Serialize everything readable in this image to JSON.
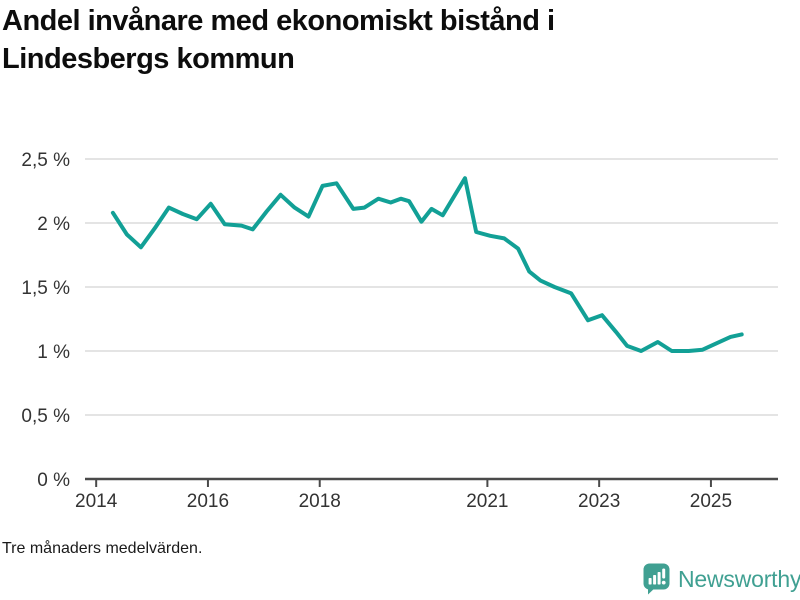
{
  "header": {
    "title_line1": "Andel invånare med ekonomiskt bistånd i",
    "title_line2": "Lindesbergs kommun"
  },
  "footer": {
    "note": "Tre månaders medelvärden.",
    "brand": "Newsworthy"
  },
  "colors": {
    "line": "#12a096",
    "brand": "#40a092",
    "grid": "#dcdcdc",
    "axis": "#4a4a4a",
    "tick_text": "#333333"
  },
  "chart_data": {
    "type": "line",
    "title": "Andel invånare med ekonomiskt bistånd i Lindesbergs kommun",
    "subtitle": "Tre månaders medelvärden.",
    "xlabel": "",
    "ylabel": "",
    "grid": true,
    "legend": false,
    "xlim": [
      2013.8,
      2026.2
    ],
    "ylim": [
      0,
      2.5
    ],
    "yticks": [
      0,
      0.5,
      1,
      1.5,
      2,
      2.5
    ],
    "ytick_labels": [
      "0 %",
      "0,5 %",
      "1 %",
      "1,5 %",
      "2 %",
      "2,5 %"
    ],
    "xticks": [
      2014,
      2016,
      2018,
      2021,
      2023,
      2025
    ],
    "xtick_labels": [
      "2014",
      "2016",
      "2018",
      "2021",
      "2023",
      "2025"
    ],
    "series": [
      {
        "points": [
          [
            2014.3,
            2.08
          ],
          [
            2014.55,
            1.91
          ],
          [
            2014.8,
            1.81
          ],
          [
            2015.05,
            1.96
          ],
          [
            2015.3,
            2.12
          ],
          [
            2015.55,
            2.07
          ],
          [
            2015.8,
            2.03
          ],
          [
            2016.05,
            2.15
          ],
          [
            2016.3,
            1.99
          ],
          [
            2016.6,
            1.98
          ],
          [
            2016.8,
            1.95
          ],
          [
            2017.05,
            2.09
          ],
          [
            2017.3,
            2.22
          ],
          [
            2017.55,
            2.12
          ],
          [
            2017.8,
            2.05
          ],
          [
            2018.05,
            2.29
          ],
          [
            2018.3,
            2.31
          ],
          [
            2018.6,
            2.11
          ],
          [
            2018.8,
            2.12
          ],
          [
            2019.05,
            2.19
          ],
          [
            2019.27,
            2.16
          ],
          [
            2019.45,
            2.19
          ],
          [
            2019.6,
            2.17
          ],
          [
            2019.82,
            2.01
          ],
          [
            2020.0,
            2.11
          ],
          [
            2020.2,
            2.06
          ],
          [
            2020.6,
            2.35
          ],
          [
            2020.8,
            1.93
          ],
          [
            2021.05,
            1.9
          ],
          [
            2021.3,
            1.88
          ],
          [
            2021.55,
            1.8
          ],
          [
            2021.75,
            1.62
          ],
          [
            2021.95,
            1.55
          ],
          [
            2022.2,
            1.5
          ],
          [
            2022.5,
            1.45
          ],
          [
            2022.8,
            1.24
          ],
          [
            2023.05,
            1.28
          ],
          [
            2023.3,
            1.15
          ],
          [
            2023.5,
            1.04
          ],
          [
            2023.75,
            1.0
          ],
          [
            2024.05,
            1.07
          ],
          [
            2024.3,
            1.0
          ],
          [
            2024.6,
            1.0
          ],
          [
            2024.85,
            1.01
          ],
          [
            2025.1,
            1.06
          ],
          [
            2025.35,
            1.11
          ],
          [
            2025.55,
            1.13
          ]
        ]
      }
    ]
  }
}
